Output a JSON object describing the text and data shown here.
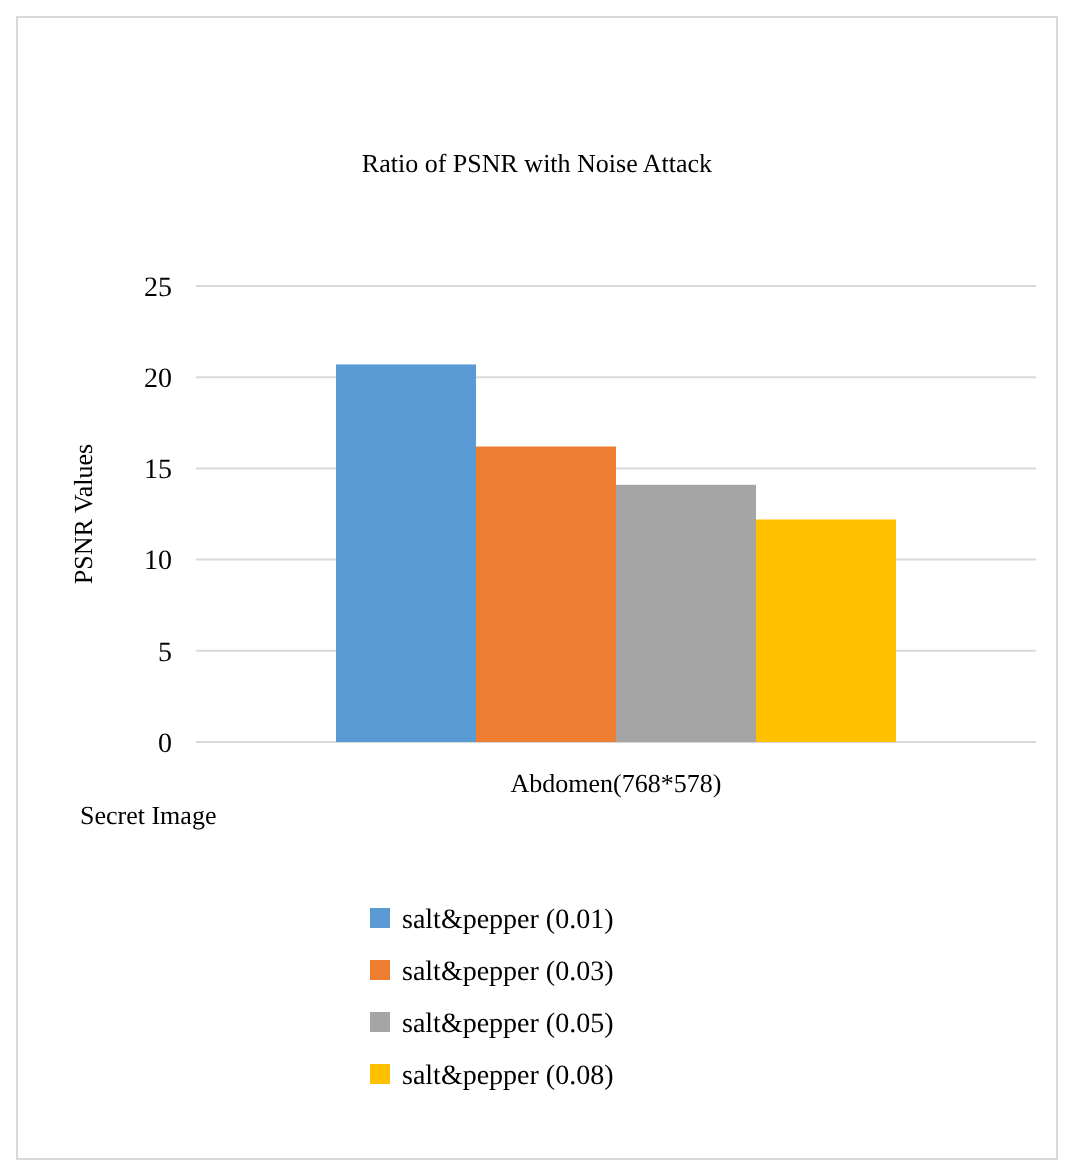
{
  "chart_data": {
    "type": "bar",
    "title": "Ratio of PSNR with Noise Attack",
    "xlabel": "Secret Image",
    "ylabel": "PSNR Values",
    "categories": [
      "Abdomen(768*578)"
    ],
    "series": [
      {
        "name": "salt&pepper (0.01)",
        "color": "#5b9bd5",
        "values": [
          20.7
        ]
      },
      {
        "name": "salt&pepper (0.03)",
        "color": "#ed7d31",
        "values": [
          16.2
        ]
      },
      {
        "name": "salt&pepper (0.05)",
        "color": "#a5a5a5",
        "values": [
          14.1
        ]
      },
      {
        "name": "salt&pepper (0.08)",
        "color": "#ffc000",
        "values": [
          12.2
        ]
      }
    ],
    "ylim": [
      0,
      25
    ],
    "yticks": [
      0,
      5,
      10,
      15,
      20,
      25
    ],
    "grid": "y",
    "legend": "bottom"
  }
}
